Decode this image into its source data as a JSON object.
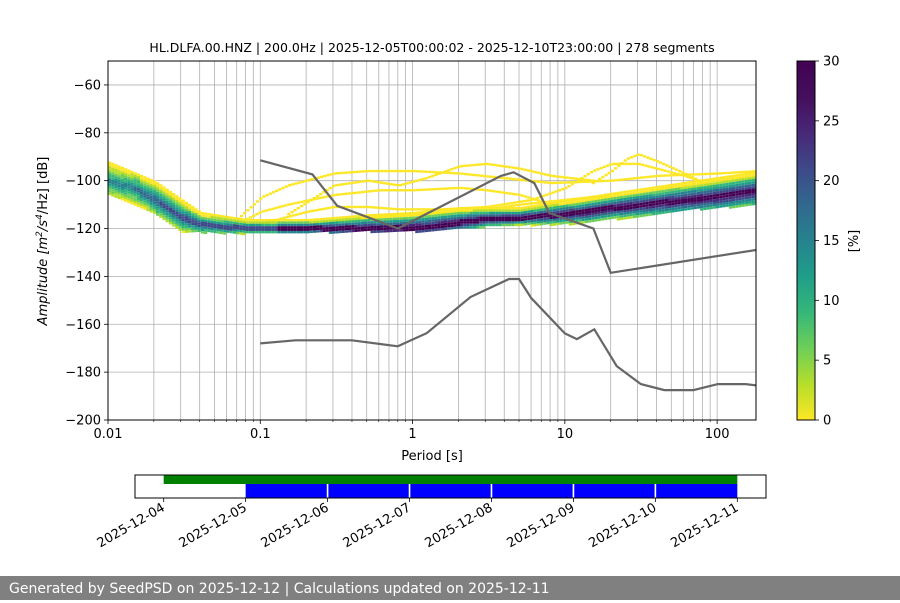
{
  "chart_data": [
    {
      "type": "heatmap",
      "title": "HL.DLFA.00.HNZ | 200.0Hz | 2025-12-05T00:00:02 - 2025-12-10T23:00:00 | 278 segments",
      "xlabel": "Period [s]",
      "ylabel_main": "Amplitude [m",
      "ylabel_sup1": "2",
      "ylabel_mid": "/s",
      "ylabel_sup2": "4",
      "ylabel_tail": "/Hz] [dB]",
      "x_scale": "log",
      "xlim": [
        0.01,
        180
      ],
      "ylim": [
        -200,
        -50
      ],
      "grid": "vertical log-period gridlines and horizontal dB gridlines",
      "x_ticks": [
        {
          "value": 0.01,
          "label": "0.01"
        },
        {
          "value": 0.1,
          "label": "0.1"
        },
        {
          "value": 1,
          "label": "1"
        },
        {
          "value": 10,
          "label": "10"
        },
        {
          "value": 100,
          "label": "100"
        }
      ],
      "y_ticks": [
        {
          "value": -60,
          "label": "−60"
        },
        {
          "value": -80,
          "label": "−80"
        },
        {
          "value": -100,
          "label": "−100"
        },
        {
          "value": -120,
          "label": "−120"
        },
        {
          "value": -140,
          "label": "−140"
        },
        {
          "value": -160,
          "label": "−160"
        },
        {
          "value": -180,
          "label": "−180"
        },
        {
          "value": -200,
          "label": "−200"
        }
      ],
      "colormap": "viridis_r",
      "colorbar": {
        "label": "[%]",
        "range": [
          0,
          30
        ],
        "ticks": [
          {
            "value": 0,
            "label": "0"
          },
          {
            "value": 5,
            "label": "5"
          },
          {
            "value": 10,
            "label": "10"
          },
          {
            "value": 15,
            "label": "15"
          },
          {
            "value": 20,
            "label": "20"
          },
          {
            "value": 25,
            "label": "25"
          },
          {
            "value": 30,
            "label": "30"
          }
        ]
      },
      "ppsd_mode": [
        [
          0.01,
          -100
        ],
        [
          0.015,
          -103
        ],
        [
          0.02,
          -108
        ],
        [
          0.03,
          -115
        ],
        [
          0.04,
          -118
        ],
        [
          0.06,
          -119
        ],
        [
          0.1,
          -119.5
        ],
        [
          0.3,
          -119.5
        ],
        [
          0.6,
          -119.5
        ],
        [
          1.2,
          -119
        ],
        [
          2,
          -117
        ],
        [
          3,
          -115.5
        ],
        [
          5,
          -115
        ],
        [
          8,
          -114
        ],
        [
          12,
          -113
        ],
        [
          20,
          -111
        ],
        [
          40,
          -109
        ],
        [
          80,
          -107
        ],
        [
          180,
          -104
        ]
      ],
      "ppsd_upper": [
        [
          0.01,
          -92
        ],
        [
          0.02,
          -100
        ],
        [
          0.04,
          -113
        ],
        [
          0.08,
          -116
        ],
        [
          0.2,
          -116
        ],
        [
          0.5,
          -114
        ],
        [
          1,
          -113
        ],
        [
          2,
          -111
        ],
        [
          5,
          -111
        ],
        [
          20,
          -105
        ],
        [
          180,
          -96
        ]
      ],
      "ppsd_lower": [
        [
          0.01,
          -106
        ],
        [
          0.02,
          -114
        ],
        [
          0.03,
          -121
        ],
        [
          0.08,
          -122
        ],
        [
          0.5,
          -121
        ],
        [
          1.2,
          -121
        ],
        [
          3,
          -119
        ],
        [
          10,
          -118
        ],
        [
          20,
          -116
        ],
        [
          60,
          -112
        ],
        [
          180,
          -110
        ]
      ],
      "scatter_bands": [
        {
          "points": [
            [
              0.07,
              -116
            ],
            [
              0.1,
              -107
            ],
            [
              0.15,
              -102
            ],
            [
              0.3,
              -97
            ],
            [
              0.5,
              -96
            ],
            [
              1,
              -96
            ],
            [
              2,
              -97
            ],
            [
              4,
              -99
            ],
            [
              8,
              -101
            ],
            [
              20,
              -100
            ],
            [
              40,
              -98
            ],
            [
              100,
              -97
            ],
            [
              180,
              -96
            ]
          ]
        },
        {
          "points": [
            [
              0.06,
              -120
            ],
            [
              0.1,
              -113
            ],
            [
              0.15,
              -110
            ],
            [
              0.3,
              -106
            ],
            [
              0.6,
              -104
            ],
            [
              1,
              -104
            ],
            [
              2,
              -103
            ],
            [
              3,
              -104
            ],
            [
              5,
              -106
            ],
            [
              8,
              -110
            ],
            [
              12,
              -113
            ],
            [
              20,
              -114
            ]
          ]
        },
        {
          "points": [
            [
              0.1,
              -118
            ],
            [
              0.2,
              -113
            ],
            [
              0.3,
              -111
            ],
            [
              0.5,
              -111
            ],
            [
              0.8,
              -112
            ],
            [
              1.5,
              -112
            ],
            [
              3,
              -111
            ],
            [
              6,
              -108
            ],
            [
              10,
              -103
            ],
            [
              15,
              -96
            ],
            [
              20,
              -93
            ],
            [
              30,
              -93
            ],
            [
              60,
              -98
            ],
            [
              100,
              -103
            ]
          ]
        },
        {
          "points": [
            [
              0.15,
              -114
            ],
            [
              0.3,
              -102
            ],
            [
              0.5,
              -100
            ],
            [
              0.8,
              -102
            ],
            [
              1.2,
              -99
            ],
            [
              2,
              -94
            ],
            [
              3,
              -93
            ],
            [
              5,
              -95
            ],
            [
              8,
              -98
            ],
            [
              15,
              -100
            ]
          ]
        },
        {
          "points": [
            [
              15,
              -101
            ],
            [
              20,
              -96
            ],
            [
              25,
              -91
            ],
            [
              30,
              -89
            ],
            [
              40,
              -92
            ],
            [
              60,
              -97
            ],
            [
              80,
              -101
            ]
          ]
        },
        {
          "points": [
            [
              0.3,
              -117
            ],
            [
              0.6,
              -115
            ],
            [
              1,
              -114
            ],
            [
              2,
              -113
            ],
            [
              3,
              -112
            ],
            [
              5,
              -110
            ],
            [
              10,
              -108
            ],
            [
              20,
              -106
            ]
          ]
        }
      ],
      "noise_models": [
        {
          "points": [
            [
              0.1,
              -91.5
            ],
            [
              0.22,
              -97.4
            ],
            [
              0.32,
              -110.5
            ],
            [
              0.8,
              -120
            ],
            [
              3.8,
              -98
            ],
            [
              4.6,
              -96.5
            ],
            [
              6.3,
              -101
            ],
            [
              7.9,
              -113.5
            ],
            [
              15.4,
              -120
            ],
            [
              20,
              -138.5
            ],
            [
              354.8,
              -126
            ]
          ]
        },
        {
          "points": [
            [
              0.1,
              -168
            ],
            [
              0.17,
              -166.7
            ],
            [
              0.4,
              -166.7
            ],
            [
              0.8,
              -169.2
            ],
            [
              1.24,
              -163.7
            ],
            [
              2.4,
              -148.6
            ],
            [
              4.3,
              -141.1
            ],
            [
              5,
              -141.1
            ],
            [
              6,
              -149
            ],
            [
              10,
              -163.8
            ],
            [
              12,
              -166.2
            ],
            [
              15.6,
              -162.1
            ],
            [
              21.9,
              -177.5
            ],
            [
              31.6,
              -185
            ],
            [
              45,
              -187.5
            ],
            [
              70,
              -187.5
            ],
            [
              101,
              -185
            ],
            [
              154,
              -185
            ],
            [
              328,
              -187.5
            ]
          ]
        }
      ]
    },
    {
      "type": "timeline",
      "x_ticks": [
        "2025-12-04",
        "2025-12-05",
        "2025-12-06",
        "2025-12-07",
        "2025-12-08",
        "2025-12-09",
        "2025-12-10",
        "2025-12-11"
      ],
      "xlim_days": [
        -0.35,
        7.35
      ],
      "series": [
        {
          "color": "#008000",
          "spans": [
            [
              0.0,
              7.0
            ]
          ]
        },
        {
          "color": "#0000ff",
          "spans": [
            [
              1.0,
              1.99
            ],
            [
              2.01,
              2.99
            ],
            [
              3.01,
              3.99
            ],
            [
              4.01,
              4.99
            ],
            [
              5.01,
              5.99
            ],
            [
              6.01,
              7.0
            ]
          ]
        }
      ]
    }
  ],
  "footer": {
    "text": "Generated by SeedPSD on 2025-12-12 | Calculations updated on 2025-12-11"
  }
}
